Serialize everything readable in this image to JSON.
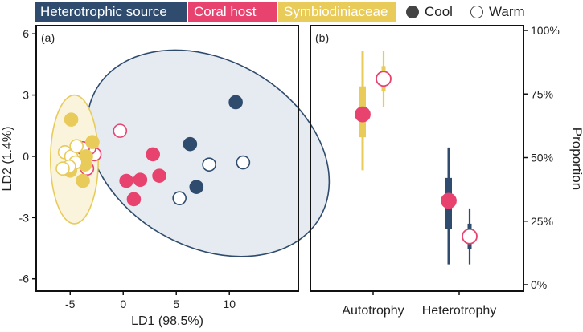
{
  "legend": {
    "heterotrophic": {
      "label": "Heterotrophic source",
      "color": "#2f4c6e"
    },
    "coral": {
      "label": "Coral host",
      "color": "#e8426f"
    },
    "symbio": {
      "label": "Symbiodiniaceae",
      "color": "#e8cb59"
    },
    "cool": {
      "label": "Cool"
    },
    "warm": {
      "label": "Warm"
    }
  },
  "chart_data": [
    {
      "type": "scatter",
      "panel_label": "(a)",
      "xlabel": "LD1 (98.5%)",
      "ylabel": "LD2 (1.4%)",
      "xlim": [
        -8.2,
        16.5
      ],
      "ylim": [
        -6.6,
        6.4
      ],
      "xticks": [
        -5,
        0,
        5,
        10
      ],
      "yticks": [
        -6,
        -3,
        0,
        3,
        6
      ],
      "ellipses": [
        {
          "group": "Heterotrophic source",
          "center": [
            8.0,
            0.15
          ],
          "rx": 8.8,
          "ry": 6.3,
          "angle": -60
        },
        {
          "group": "Symbiodiniaceae",
          "center": [
            -4.6,
            -0.15
          ],
          "rx": 2.25,
          "ry": 3.15,
          "angle": 0
        }
      ],
      "series": [
        {
          "name": "Heterotrophic source",
          "condition": "Cool",
          "points": [
            [
              10.6,
              2.65
            ],
            [
              6.3,
              0.6
            ],
            [
              6.9,
              -1.5
            ]
          ]
        },
        {
          "name": "Heterotrophic source",
          "condition": "Warm",
          "points": [
            [
              8.1,
              -0.4
            ],
            [
              11.3,
              -0.3
            ],
            [
              5.3,
              -2.05
            ]
          ]
        },
        {
          "name": "Coral host",
          "condition": "Cool",
          "points": [
            [
              2.8,
              0.1
            ],
            [
              3.4,
              -0.95
            ],
            [
              1.6,
              -1.15
            ],
            [
              0.3,
              -1.2
            ],
            [
              1.0,
              -2.1
            ]
          ]
        },
        {
          "name": "Coral host",
          "condition": "Warm",
          "points": [
            [
              -0.3,
              1.25
            ],
            [
              -2.7,
              0.1
            ],
            [
              -3.2,
              0.4
            ],
            [
              -3.8,
              0.4
            ],
            [
              -3.4,
              -0.6
            ]
          ]
        },
        {
          "name": "Symbiodiniaceae",
          "condition": "Cool",
          "points": [
            [
              -4.9,
              1.8
            ],
            [
              -2.9,
              0.7
            ],
            [
              -3.5,
              0.0
            ],
            [
              -3.6,
              -0.4
            ],
            [
              -3.8,
              -1.2
            ],
            [
              -5.0,
              -0.7
            ]
          ]
        },
        {
          "name": "Symbiodiniaceae",
          "condition": "Warm",
          "points": [
            [
              -5.5,
              0.2
            ],
            [
              -4.9,
              0.0
            ],
            [
              -4.4,
              0.5
            ],
            [
              -4.5,
              -0.3
            ],
            [
              -5.1,
              -0.5
            ],
            [
              -5.7,
              -0.6
            ]
          ]
        }
      ]
    },
    {
      "type": "interval",
      "panel_label": "(b)",
      "ylabel": "Proportion",
      "ylim": [
        0,
        1
      ],
      "yticks": [
        "0%",
        "25%",
        "50%",
        "75%",
        "100%"
      ],
      "categories": [
        "Autotrophy",
        "Heterotrophy"
      ],
      "series": [
        {
          "category": "Autotrophy",
          "condition": "Cool",
          "median": 0.67,
          "inner": [
            0.58,
            0.78
          ],
          "outer": [
            0.45,
            0.92
          ]
        },
        {
          "category": "Autotrophy",
          "condition": "Warm",
          "median": 0.81,
          "inner": [
            0.76,
            0.86
          ],
          "outer": [
            0.7,
            0.92
          ]
        },
        {
          "category": "Heterotrophy",
          "condition": "Cool",
          "median": 0.33,
          "inner": [
            0.22,
            0.42
          ],
          "outer": [
            0.08,
            0.54
          ]
        },
        {
          "category": "Heterotrophy",
          "condition": "Warm",
          "median": 0.19,
          "inner": [
            0.14,
            0.24
          ],
          "outer": [
            0.08,
            0.3
          ]
        }
      ]
    }
  ]
}
